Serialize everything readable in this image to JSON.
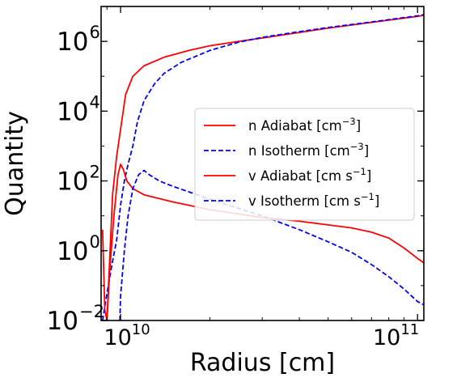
{
  "chart_data": {
    "type": "line",
    "xlabel": "Radius [cm]",
    "ylabel": "Quantity",
    "xscale": "log",
    "yscale": "log",
    "xlim": [
      8600000000.0,
      105000000000.0
    ],
    "ylim": [
      0.01,
      10000000.0
    ],
    "grid": false,
    "legend_position": "center-right",
    "x_ticks": [
      {
        "value": 10000000000.0,
        "mantissa": "10",
        "exponent": "10"
      },
      {
        "value": 100000000000.0,
        "mantissa": "10",
        "exponent": "11"
      }
    ],
    "y_ticks": [
      {
        "value": 0.01,
        "mantissa": "10",
        "exponent": "−2"
      },
      {
        "value": 1,
        "mantissa": "10",
        "exponent": "0"
      },
      {
        "value": 100,
        "mantissa": "10",
        "exponent": "2"
      },
      {
        "value": 10000,
        "mantissa": "10",
        "exponent": "4"
      },
      {
        "value": 1000000,
        "mantissa": "10",
        "exponent": "6"
      }
    ],
    "series": [
      {
        "name": "n Adiabat [cm⁻³]",
        "legend": {
          "base": "n Adiabat [cm",
          "sup": "−3",
          "tail": "]"
        },
        "color": "#ff0000",
        "style": "solid",
        "points": [
          [
            8700000000.0,
            0.01
          ],
          [
            9000000000.0,
            0.01
          ],
          [
            9400000000.0,
            40
          ],
          [
            9700000000.0,
            500
          ],
          [
            10000000000.0,
            3000
          ],
          [
            10400000000.0,
            30000
          ],
          [
            11000000000.0,
            100000
          ],
          [
            12000000000.0,
            200000
          ],
          [
            14000000000.0,
            350000
          ],
          [
            17000000000.0,
            550000
          ],
          [
            20000000000.0,
            750000
          ],
          [
            25000000000.0,
            1000000.0
          ],
          [
            30000000000.0,
            1250000.0
          ],
          [
            40000000000.0,
            1800000.0
          ],
          [
            50000000000.0,
            2400000.0
          ],
          [
            70000000000.0,
            3500000.0
          ],
          [
            100000000000.0,
            5200000.0
          ],
          [
            105000000000.0,
            5600000.0
          ]
        ]
      },
      {
        "name": "n Isotherm [cm⁻³]",
        "legend": {
          "base": "n Isotherm [cm",
          "sup": "−3",
          "tail": "]"
        },
        "color": "#0000ff",
        "style": "dashed",
        "points": [
          [
            8700000000.0,
            0.01
          ],
          [
            9000000000.0,
            0.06
          ],
          [
            9400000000.0,
            0.5
          ],
          [
            9700000000.0,
            2
          ],
          [
            10000000000.0,
            20
          ],
          [
            10300000000.0,
            100
          ],
          [
            10600000000.0,
            300
          ],
          [
            11000000000.0,
            1000
          ],
          [
            11400000000.0,
            5000
          ],
          [
            12000000000.0,
            20000
          ],
          [
            13000000000.0,
            60000
          ],
          [
            14000000000.0,
            120000
          ],
          [
            16000000000.0,
            250000
          ],
          [
            20000000000.0,
            550000
          ],
          [
            25000000000.0,
            950000
          ],
          [
            30000000000.0,
            1300000.0
          ],
          [
            40000000000.0,
            1900000.0
          ],
          [
            50000000000.0,
            2500000.0
          ],
          [
            70000000000.0,
            3600000.0
          ],
          [
            100000000000.0,
            5400000.0
          ],
          [
            105000000000.0,
            5800000.0
          ]
        ]
      },
      {
        "name": "v Adiabat [cm s⁻¹]",
        "legend": {
          "base": "v Adiabat [cm s",
          "sup": "−1",
          "tail": "]"
        },
        "color": "#ff0000",
        "style": "solid",
        "points": [
          [
            8700000000.0,
            4
          ],
          [
            8850000000.0,
            0.02
          ],
          [
            9000000000.0,
            0.01
          ],
          [
            9200000000.0,
            0.3
          ],
          [
            9500000000.0,
            10
          ],
          [
            9800000000.0,
            150
          ],
          [
            10000000000.0,
            300
          ],
          [
            10200000000.0,
            220
          ],
          [
            10500000000.0,
            100
          ],
          [
            11000000000.0,
            60
          ],
          [
            12000000000.0,
            40
          ],
          [
            15000000000.0,
            25
          ],
          [
            20000000000.0,
            15
          ],
          [
            30000000000.0,
            9
          ],
          [
            40000000000.0,
            7
          ],
          [
            50000000000.0,
            5.5
          ],
          [
            60000000000.0,
            4.5
          ],
          [
            70000000000.0,
            3.4
          ],
          [
            80000000000.0,
            2.3
          ],
          [
            90000000000.0,
            1.2
          ],
          [
            100000000000.0,
            0.6
          ],
          [
            105000000000.0,
            0.45
          ]
        ]
      },
      {
        "name": "v Isotherm [cm s⁻¹]",
        "legend": {
          "base": "v Isotherm [cm s",
          "sup": "−1",
          "tail": "]"
        },
        "color": "#0000ff",
        "style": "dashed",
        "points": [
          [
            9950000000.0,
            0.01
          ],
          [
            10000000000.0,
            0.05
          ],
          [
            10300000000.0,
            1
          ],
          [
            10600000000.0,
            10
          ],
          [
            11000000000.0,
            60
          ],
          [
            11500000000.0,
            150
          ],
          [
            12000000000.0,
            200
          ],
          [
            12500000000.0,
            150
          ],
          [
            13500000000.0,
            100
          ],
          [
            15000000000.0,
            70
          ],
          [
            20000000000.0,
            30
          ],
          [
            30000000000.0,
            10
          ],
          [
            40000000000.0,
            4
          ],
          [
            50000000000.0,
            1.8
          ],
          [
            60000000000.0,
            0.9
          ],
          [
            70000000000.0,
            0.4
          ],
          [
            80000000000.0,
            0.18
          ],
          [
            90000000000.0,
            0.08
          ],
          [
            100000000000.0,
            0.035
          ],
          [
            105000000000.0,
            0.028
          ]
        ]
      }
    ]
  }
}
